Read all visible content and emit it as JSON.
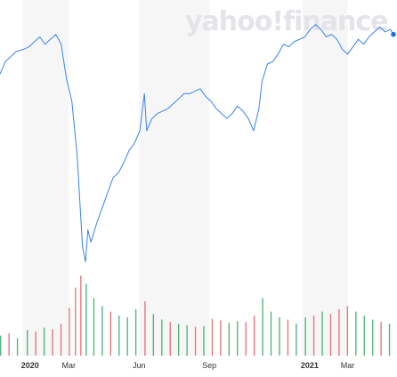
{
  "watermark": "yahoo!finance",
  "colors": {
    "price_line": "#3b83e8",
    "last_point": "#1a6fe0",
    "volume_up": "#36a96b",
    "volume_down": "#e0626c",
    "band": "#f6f6f7"
  },
  "chart_data": {
    "type": "line",
    "title": "",
    "xlabel": "",
    "ylabel": "",
    "x_tick_labels": [
      "2020",
      "Mar",
      "Jun",
      "Sep",
      "2021",
      "Mar"
    ],
    "x_tick_dates": [
      "2020-01-01",
      "2020-03-01",
      "2020-06-01",
      "2020-09-01",
      "2021-01-01",
      "2021-03-01"
    ],
    "x_range": [
      "2019-12-02",
      "2021-04-30"
    ],
    "y_axis_labels_shown": false,
    "y_range_relative": [
      0,
      100
    ],
    "grid": false,
    "legend": "none",
    "series": [
      {
        "kind": "price",
        "points": [
          [
            "2019-12-02",
            78
          ],
          [
            "2019-12-09",
            83
          ],
          [
            "2019-12-16",
            85
          ],
          [
            "2019-12-23",
            87
          ],
          [
            "2020-01-02",
            88
          ],
          [
            "2020-01-09",
            89
          ],
          [
            "2020-01-16",
            91
          ],
          [
            "2020-01-23",
            93
          ],
          [
            "2020-01-30",
            90
          ],
          [
            "2020-02-06",
            92
          ],
          [
            "2020-02-13",
            94
          ],
          [
            "2020-02-20",
            90
          ],
          [
            "2020-02-27",
            76
          ],
          [
            "2020-03-05",
            67
          ],
          [
            "2020-03-12",
            45
          ],
          [
            "2020-03-16",
            24
          ],
          [
            "2020-03-19",
            8
          ],
          [
            "2020-03-23",
            2
          ],
          [
            "2020-03-26",
            15
          ],
          [
            "2020-03-30",
            10
          ],
          [
            "2020-04-02",
            13
          ],
          [
            "2020-04-07",
            18
          ],
          [
            "2020-04-14",
            24
          ],
          [
            "2020-04-21",
            30
          ],
          [
            "2020-04-28",
            36
          ],
          [
            "2020-05-05",
            38
          ],
          [
            "2020-05-12",
            42
          ],
          [
            "2020-05-19",
            47
          ],
          [
            "2020-05-26",
            50
          ],
          [
            "2020-06-02",
            55
          ],
          [
            "2020-06-08",
            70
          ],
          [
            "2020-06-11",
            55
          ],
          [
            "2020-06-18",
            60
          ],
          [
            "2020-06-25",
            62
          ],
          [
            "2020-07-02",
            63
          ],
          [
            "2020-07-09",
            64
          ],
          [
            "2020-07-16",
            66
          ],
          [
            "2020-07-23",
            68
          ],
          [
            "2020-07-30",
            70
          ],
          [
            "2020-08-06",
            70
          ],
          [
            "2020-08-13",
            71
          ],
          [
            "2020-08-20",
            72
          ],
          [
            "2020-08-27",
            69
          ],
          [
            "2020-09-03",
            67
          ],
          [
            "2020-09-10",
            64
          ],
          [
            "2020-09-17",
            62
          ],
          [
            "2020-09-24",
            60
          ],
          [
            "2020-10-01",
            62
          ],
          [
            "2020-10-08",
            65
          ],
          [
            "2020-10-15",
            63
          ],
          [
            "2020-10-22",
            60
          ],
          [
            "2020-10-29",
            55
          ],
          [
            "2020-11-05",
            64
          ],
          [
            "2020-11-09",
            75
          ],
          [
            "2020-11-16",
            82
          ],
          [
            "2020-11-23",
            83
          ],
          [
            "2020-11-30",
            86
          ],
          [
            "2020-12-07",
            90
          ],
          [
            "2020-12-14",
            89
          ],
          [
            "2020-12-21",
            91
          ],
          [
            "2021-01-04",
            93
          ],
          [
            "2021-01-11",
            96
          ],
          [
            "2021-01-18",
            98
          ],
          [
            "2021-01-25",
            96
          ],
          [
            "2021-02-01",
            93
          ],
          [
            "2021-02-08",
            94
          ],
          [
            "2021-02-15",
            92
          ],
          [
            "2021-02-22",
            88
          ],
          [
            "2021-03-01",
            86
          ],
          [
            "2021-03-08",
            89
          ],
          [
            "2021-03-15",
            92
          ],
          [
            "2021-03-22",
            90
          ],
          [
            "2021-03-29",
            93
          ],
          [
            "2021-04-05",
            95
          ],
          [
            "2021-04-12",
            97
          ],
          [
            "2021-04-19",
            95
          ],
          [
            "2021-04-26",
            96
          ],
          [
            "2021-04-30",
            94
          ]
        ]
      },
      {
        "kind": "volume",
        "bars": [
          [
            "2019-12-02",
            25,
            "up"
          ],
          [
            "2019-12-13",
            28,
            "down"
          ],
          [
            "2019-12-24",
            22,
            "up"
          ],
          [
            "2020-01-06",
            32,
            "up"
          ],
          [
            "2020-01-17",
            30,
            "down"
          ],
          [
            "2020-01-28",
            35,
            "up"
          ],
          [
            "2020-02-08",
            33,
            "down"
          ],
          [
            "2020-02-19",
            40,
            "down"
          ],
          [
            "2020-03-01",
            60,
            "down"
          ],
          [
            "2020-03-09",
            85,
            "down"
          ],
          [
            "2020-03-16",
            100,
            "down"
          ],
          [
            "2020-03-23",
            90,
            "up"
          ],
          [
            "2020-04-02",
            72,
            "up"
          ],
          [
            "2020-04-13",
            62,
            "up"
          ],
          [
            "2020-04-24",
            55,
            "down"
          ],
          [
            "2020-05-05",
            50,
            "up"
          ],
          [
            "2020-05-16",
            48,
            "up"
          ],
          [
            "2020-05-27",
            58,
            "up"
          ],
          [
            "2020-06-08",
            68,
            "down"
          ],
          [
            "2020-06-19",
            52,
            "up"
          ],
          [
            "2020-06-30",
            45,
            "up"
          ],
          [
            "2020-07-11",
            42,
            "down"
          ],
          [
            "2020-07-22",
            40,
            "up"
          ],
          [
            "2020-08-02",
            38,
            "up"
          ],
          [
            "2020-08-13",
            36,
            "down"
          ],
          [
            "2020-08-24",
            37,
            "up"
          ],
          [
            "2020-09-04",
            46,
            "down"
          ],
          [
            "2020-09-15",
            44,
            "down"
          ],
          [
            "2020-09-26",
            41,
            "up"
          ],
          [
            "2020-10-07",
            43,
            "up"
          ],
          [
            "2020-10-18",
            42,
            "down"
          ],
          [
            "2020-10-29",
            50,
            "down"
          ],
          [
            "2020-11-09",
            72,
            "up"
          ],
          [
            "2020-11-20",
            55,
            "up"
          ],
          [
            "2020-12-01",
            48,
            "up"
          ],
          [
            "2020-12-12",
            45,
            "down"
          ],
          [
            "2020-12-23",
            40,
            "up"
          ],
          [
            "2021-01-04",
            48,
            "up"
          ],
          [
            "2021-01-15",
            50,
            "down"
          ],
          [
            "2021-01-26",
            55,
            "up"
          ],
          [
            "2021-02-06",
            52,
            "down"
          ],
          [
            "2021-02-17",
            58,
            "down"
          ],
          [
            "2021-02-28",
            62,
            "down"
          ],
          [
            "2021-03-11",
            55,
            "up"
          ],
          [
            "2021-03-22",
            50,
            "up"
          ],
          [
            "2021-04-02",
            45,
            "up"
          ],
          [
            "2021-04-13",
            42,
            "down"
          ],
          [
            "2021-04-24",
            40,
            "up"
          ]
        ]
      }
    ]
  }
}
